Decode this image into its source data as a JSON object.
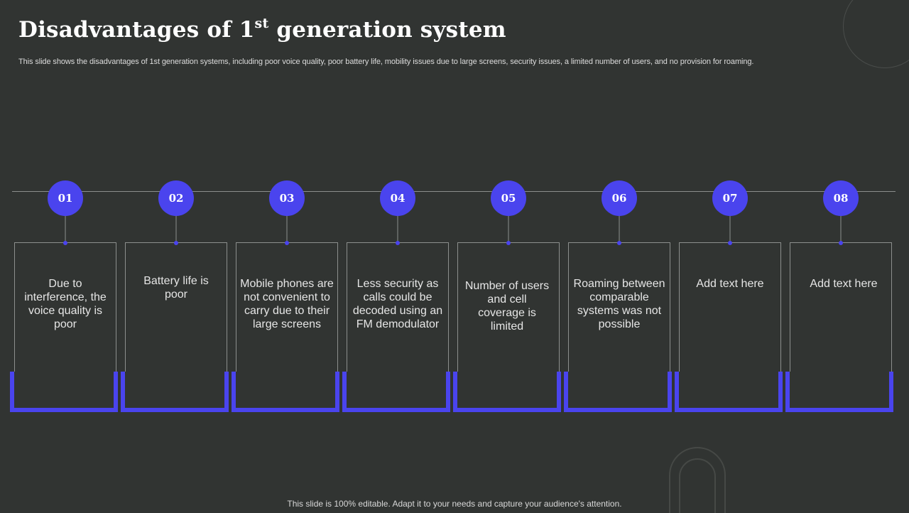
{
  "title": {
    "main": "Disadvantages of 1",
    "sup": "st",
    "rest": " generation system"
  },
  "subtitle": "This slide shows the disadvantages of 1st generation systems, including poor voice quality, poor battery life, mobility issues due to large screens, security issues, a limited number of users, and no provision for roaming.",
  "colors": {
    "background": "#313432",
    "accent": "#4a44ee",
    "line": "#8c8f8d",
    "text": "#e6e6e6"
  },
  "steps": [
    {
      "number": "01",
      "text": "Due to interference, the voice quality is poor"
    },
    {
      "number": "02",
      "text": "Battery life is poor"
    },
    {
      "number": "03",
      "text": "Mobile phones are not convenient to carry due to their large screens"
    },
    {
      "number": "04",
      "text": "Less security as calls could be decoded using an FM demodulator"
    },
    {
      "number": "05",
      "text": "Number of users and cell coverage is limited"
    },
    {
      "number": "06",
      "text": "Roaming between comparable systems was not possible"
    },
    {
      "number": "07",
      "text": "Add text here"
    },
    {
      "number": "08",
      "text": "Add text here"
    }
  ],
  "footer": "This slide is 100% editable. Adapt it to your needs and capture your audience's attention."
}
